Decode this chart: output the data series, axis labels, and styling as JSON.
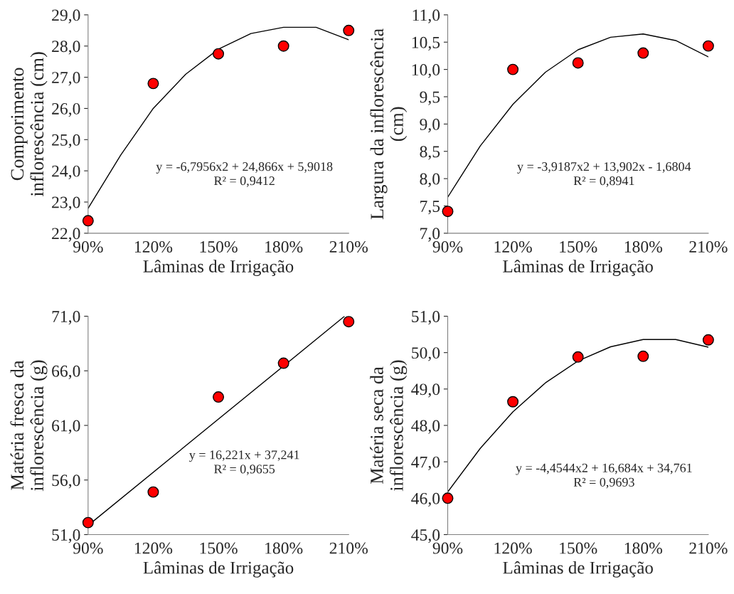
{
  "chart_data": [
    {
      "type": "scatter",
      "xlabel": "Lâminas de Irrigação",
      "ylabel": "Comporimento\ninflorescência (cm)",
      "xlim": [
        0.9,
        2.1
      ],
      "xticks": [
        {
          "value": 0.9,
          "label": "90%"
        },
        {
          "value": 1.2,
          "label": "120%"
        },
        {
          "value": 1.5,
          "label": "150%"
        },
        {
          "value": 1.8,
          "label": "180%"
        },
        {
          "value": 2.1,
          "label": "210%"
        }
      ],
      "ylim": [
        22,
        29
      ],
      "yticks": [
        {
          "value": 22,
          "label": "22,0"
        },
        {
          "value": 23,
          "label": "23,0"
        },
        {
          "value": 24,
          "label": "24,0"
        },
        {
          "value": 25,
          "label": "25,0"
        },
        {
          "value": 26,
          "label": "26,0"
        },
        {
          "value": 27,
          "label": "27,0"
        },
        {
          "value": 28,
          "label": "28,0"
        },
        {
          "value": 29,
          "label": "29,0"
        }
      ],
      "grid": false,
      "legend": false,
      "series": [
        {
          "type": "line",
          "color": "#000000",
          "x": [
            0.9,
            1.05,
            1.2,
            1.35,
            1.5,
            1.65,
            1.8,
            1.95,
            2.1
          ],
          "values": [
            22.8,
            24.5,
            26.0,
            27.1,
            27.9,
            28.4,
            28.6,
            28.6,
            28.2
          ]
        },
        {
          "color": "#ff0000",
          "marker": "circle",
          "x": [
            0.9,
            1.2,
            1.5,
            1.8,
            2.1
          ],
          "values": [
            22.4,
            26.8,
            27.75,
            28.0,
            28.5
          ]
        }
      ],
      "annotations": [
        "y = -6,7956x2 + 24,866x + 5,9018",
        "R² = 0,9412"
      ]
    },
    {
      "type": "scatter",
      "xlabel": "Lâminas de Irrigação",
      "ylabel": "Largura da inflorescência\n(cm)",
      "xlim": [
        0.9,
        2.1
      ],
      "xticks": [
        {
          "value": 0.9,
          "label": "90%"
        },
        {
          "value": 1.2,
          "label": "120%"
        },
        {
          "value": 1.5,
          "label": "150%"
        },
        {
          "value": 1.8,
          "label": "180%"
        },
        {
          "value": 2.1,
          "label": "210%"
        }
      ],
      "ylim": [
        7,
        11
      ],
      "yticks": [
        {
          "value": 7,
          "label": "7,0"
        },
        {
          "value": 7.5,
          "label": "7,5"
        },
        {
          "value": 8,
          "label": "8,0"
        },
        {
          "value": 8.5,
          "label": "8,5"
        },
        {
          "value": 9,
          "label": "9,0"
        },
        {
          "value": 9.5,
          "label": "9,5"
        },
        {
          "value": 10,
          "label": "10,0"
        },
        {
          "value": 10.5,
          "label": "10,5"
        },
        {
          "value": 11,
          "label": "11,0"
        }
      ],
      "grid": false,
      "legend": false,
      "series": [
        {
          "type": "line",
          "color": "#000000",
          "x": [
            0.9,
            1.05,
            1.2,
            1.35,
            1.5,
            1.65,
            1.8,
            1.95,
            2.1
          ],
          "values": [
            7.66,
            8.6,
            9.36,
            9.95,
            10.36,
            10.59,
            10.65,
            10.53,
            10.23
          ]
        },
        {
          "color": "#ff0000",
          "marker": "circle",
          "x": [
            0.9,
            1.2,
            1.5,
            1.8,
            2.1
          ],
          "values": [
            7.4,
            10.0,
            10.12,
            10.3,
            10.43
          ]
        }
      ],
      "annotations": [
        "y = -3,9187x2 + 13,902x - 1,6804",
        "R² = 0,8941"
      ]
    },
    {
      "type": "scatter",
      "xlabel": "Lâminas de Irrigação",
      "ylabel": "Matéria fresca da\ninflorescência (g)",
      "xlim": [
        0.9,
        2.1
      ],
      "xticks": [
        {
          "value": 0.9,
          "label": "90%"
        },
        {
          "value": 1.2,
          "label": "120%"
        },
        {
          "value": 1.5,
          "label": "150%"
        },
        {
          "value": 1.8,
          "label": "180%"
        },
        {
          "value": 2.1,
          "label": "210%"
        }
      ],
      "ylim": [
        51,
        71
      ],
      "yticks": [
        {
          "value": 51,
          "label": "51,0"
        },
        {
          "value": 56,
          "label": "56,0"
        },
        {
          "value": 61,
          "label": "61,0"
        },
        {
          "value": 66,
          "label": "66,0"
        },
        {
          "value": 71,
          "label": "71,0"
        }
      ],
      "grid": false,
      "legend": false,
      "series": [
        {
          "type": "line",
          "color": "#000000",
          "x": [
            0.9,
            2.08
          ],
          "values": [
            51.84,
            70.98
          ]
        },
        {
          "color": "#ff0000",
          "marker": "circle",
          "x": [
            0.9,
            1.2,
            1.5,
            1.8,
            2.1
          ],
          "values": [
            52.1,
            54.9,
            63.6,
            66.7,
            70.5
          ]
        }
      ],
      "annotations": [
        "y = 16,221x + 37,241",
        "R² = 0,9655"
      ]
    },
    {
      "type": "scatter",
      "xlabel": "Lâminas de Irrigação",
      "ylabel": "Matéria seca da\ninflorescência (g)",
      "xlim": [
        0.9,
        2.1
      ],
      "xticks": [
        {
          "value": 0.9,
          "label": "90%"
        },
        {
          "value": 1.2,
          "label": "120%"
        },
        {
          "value": 1.5,
          "label": "150%"
        },
        {
          "value": 1.8,
          "label": "180%"
        },
        {
          "value": 2.1,
          "label": "210%"
        }
      ],
      "ylim": [
        45,
        51
      ],
      "yticks": [
        {
          "value": 45,
          "label": "45,0"
        },
        {
          "value": 46,
          "label": "46,0"
        },
        {
          "value": 47,
          "label": "47,0"
        },
        {
          "value": 48,
          "label": "48,0"
        },
        {
          "value": 49,
          "label": "49,0"
        },
        {
          "value": 50,
          "label": "50,0"
        },
        {
          "value": 51,
          "label": "51,0"
        }
      ],
      "grid": false,
      "legend": false,
      "series": [
        {
          "type": "line",
          "color": "#000000",
          "x": [
            0.9,
            1.05,
            1.2,
            1.35,
            1.5,
            1.65,
            1.8,
            1.95,
            2.1
          ],
          "values": [
            46.17,
            47.37,
            48.37,
            49.17,
            49.77,
            50.16,
            50.36,
            50.36,
            50.15
          ]
        },
        {
          "color": "#ff0000",
          "marker": "circle",
          "x": [
            0.9,
            1.2,
            1.5,
            1.8,
            2.1
          ],
          "values": [
            46.0,
            48.65,
            49.88,
            49.9,
            50.35
          ]
        }
      ],
      "annotations": [
        "y = -4,4544x2 + 16,684x + 34,761",
        "R² = 0,9693"
      ]
    }
  ]
}
